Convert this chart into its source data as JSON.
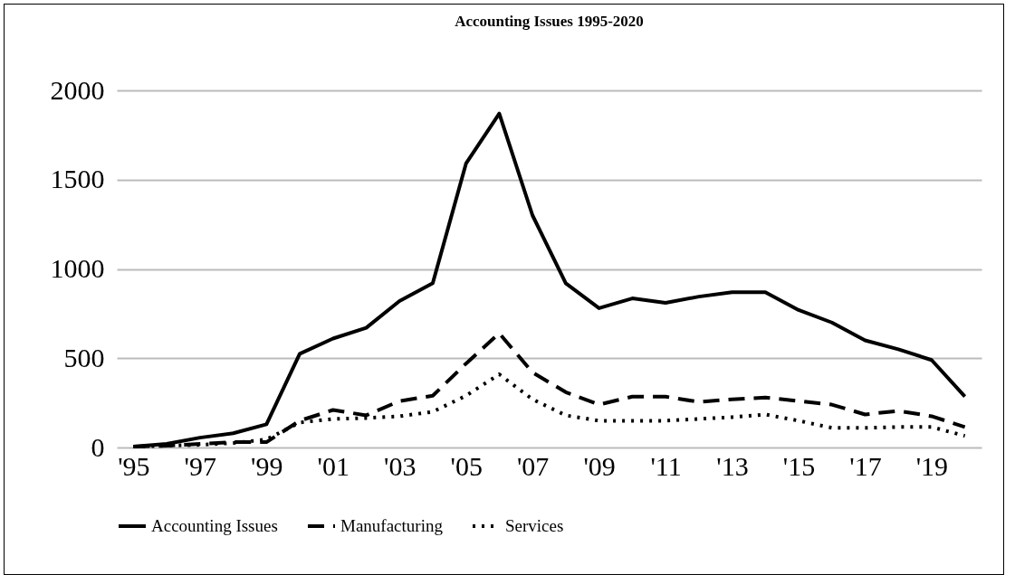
{
  "chart_data": {
    "type": "line",
    "title": "Accounting Issues 1995-2020",
    "categories": [
      "'95",
      null,
      "'97",
      null,
      "'99",
      null,
      "'01",
      null,
      "'03",
      null,
      "'05",
      null,
      "'07",
      null,
      "'09",
      null,
      "'11",
      null,
      "'13",
      null,
      "'15",
      null,
      "'17",
      null,
      "'19",
      null
    ],
    "series": [
      {
        "name": "Accounting Issues",
        "color": "#000000",
        "line_style": "solid",
        "values": [
          5,
          20,
          55,
          80,
          130,
          525,
          610,
          670,
          820,
          920,
          1590,
          1870,
          1300,
          920,
          780,
          835,
          810,
          845,
          870,
          870,
          770,
          700,
          600,
          550,
          490,
          285
        ]
      },
      {
        "name": "Manufacturing",
        "color": "#000000",
        "line_style": "dashed",
        "values": [
          5,
          10,
          20,
          30,
          30,
          150,
          210,
          180,
          260,
          290,
          470,
          640,
          420,
          310,
          240,
          285,
          285,
          255,
          270,
          280,
          260,
          240,
          185,
          205,
          175,
          115
        ]
      },
      {
        "name": "Services",
        "color": "#000000",
        "line_style": "dotted",
        "values": [
          5,
          10,
          15,
          25,
          45,
          140,
          160,
          165,
          175,
          200,
          290,
          410,
          270,
          180,
          150,
          150,
          150,
          160,
          170,
          185,
          150,
          110,
          110,
          115,
          115,
          65
        ]
      }
    ],
    "ylim": [
      0,
      2000
    ],
    "yticks": [
      0,
      500,
      1000,
      1500,
      2000
    ],
    "grid": "y",
    "legend": "bottom",
    "marker": "none"
  }
}
